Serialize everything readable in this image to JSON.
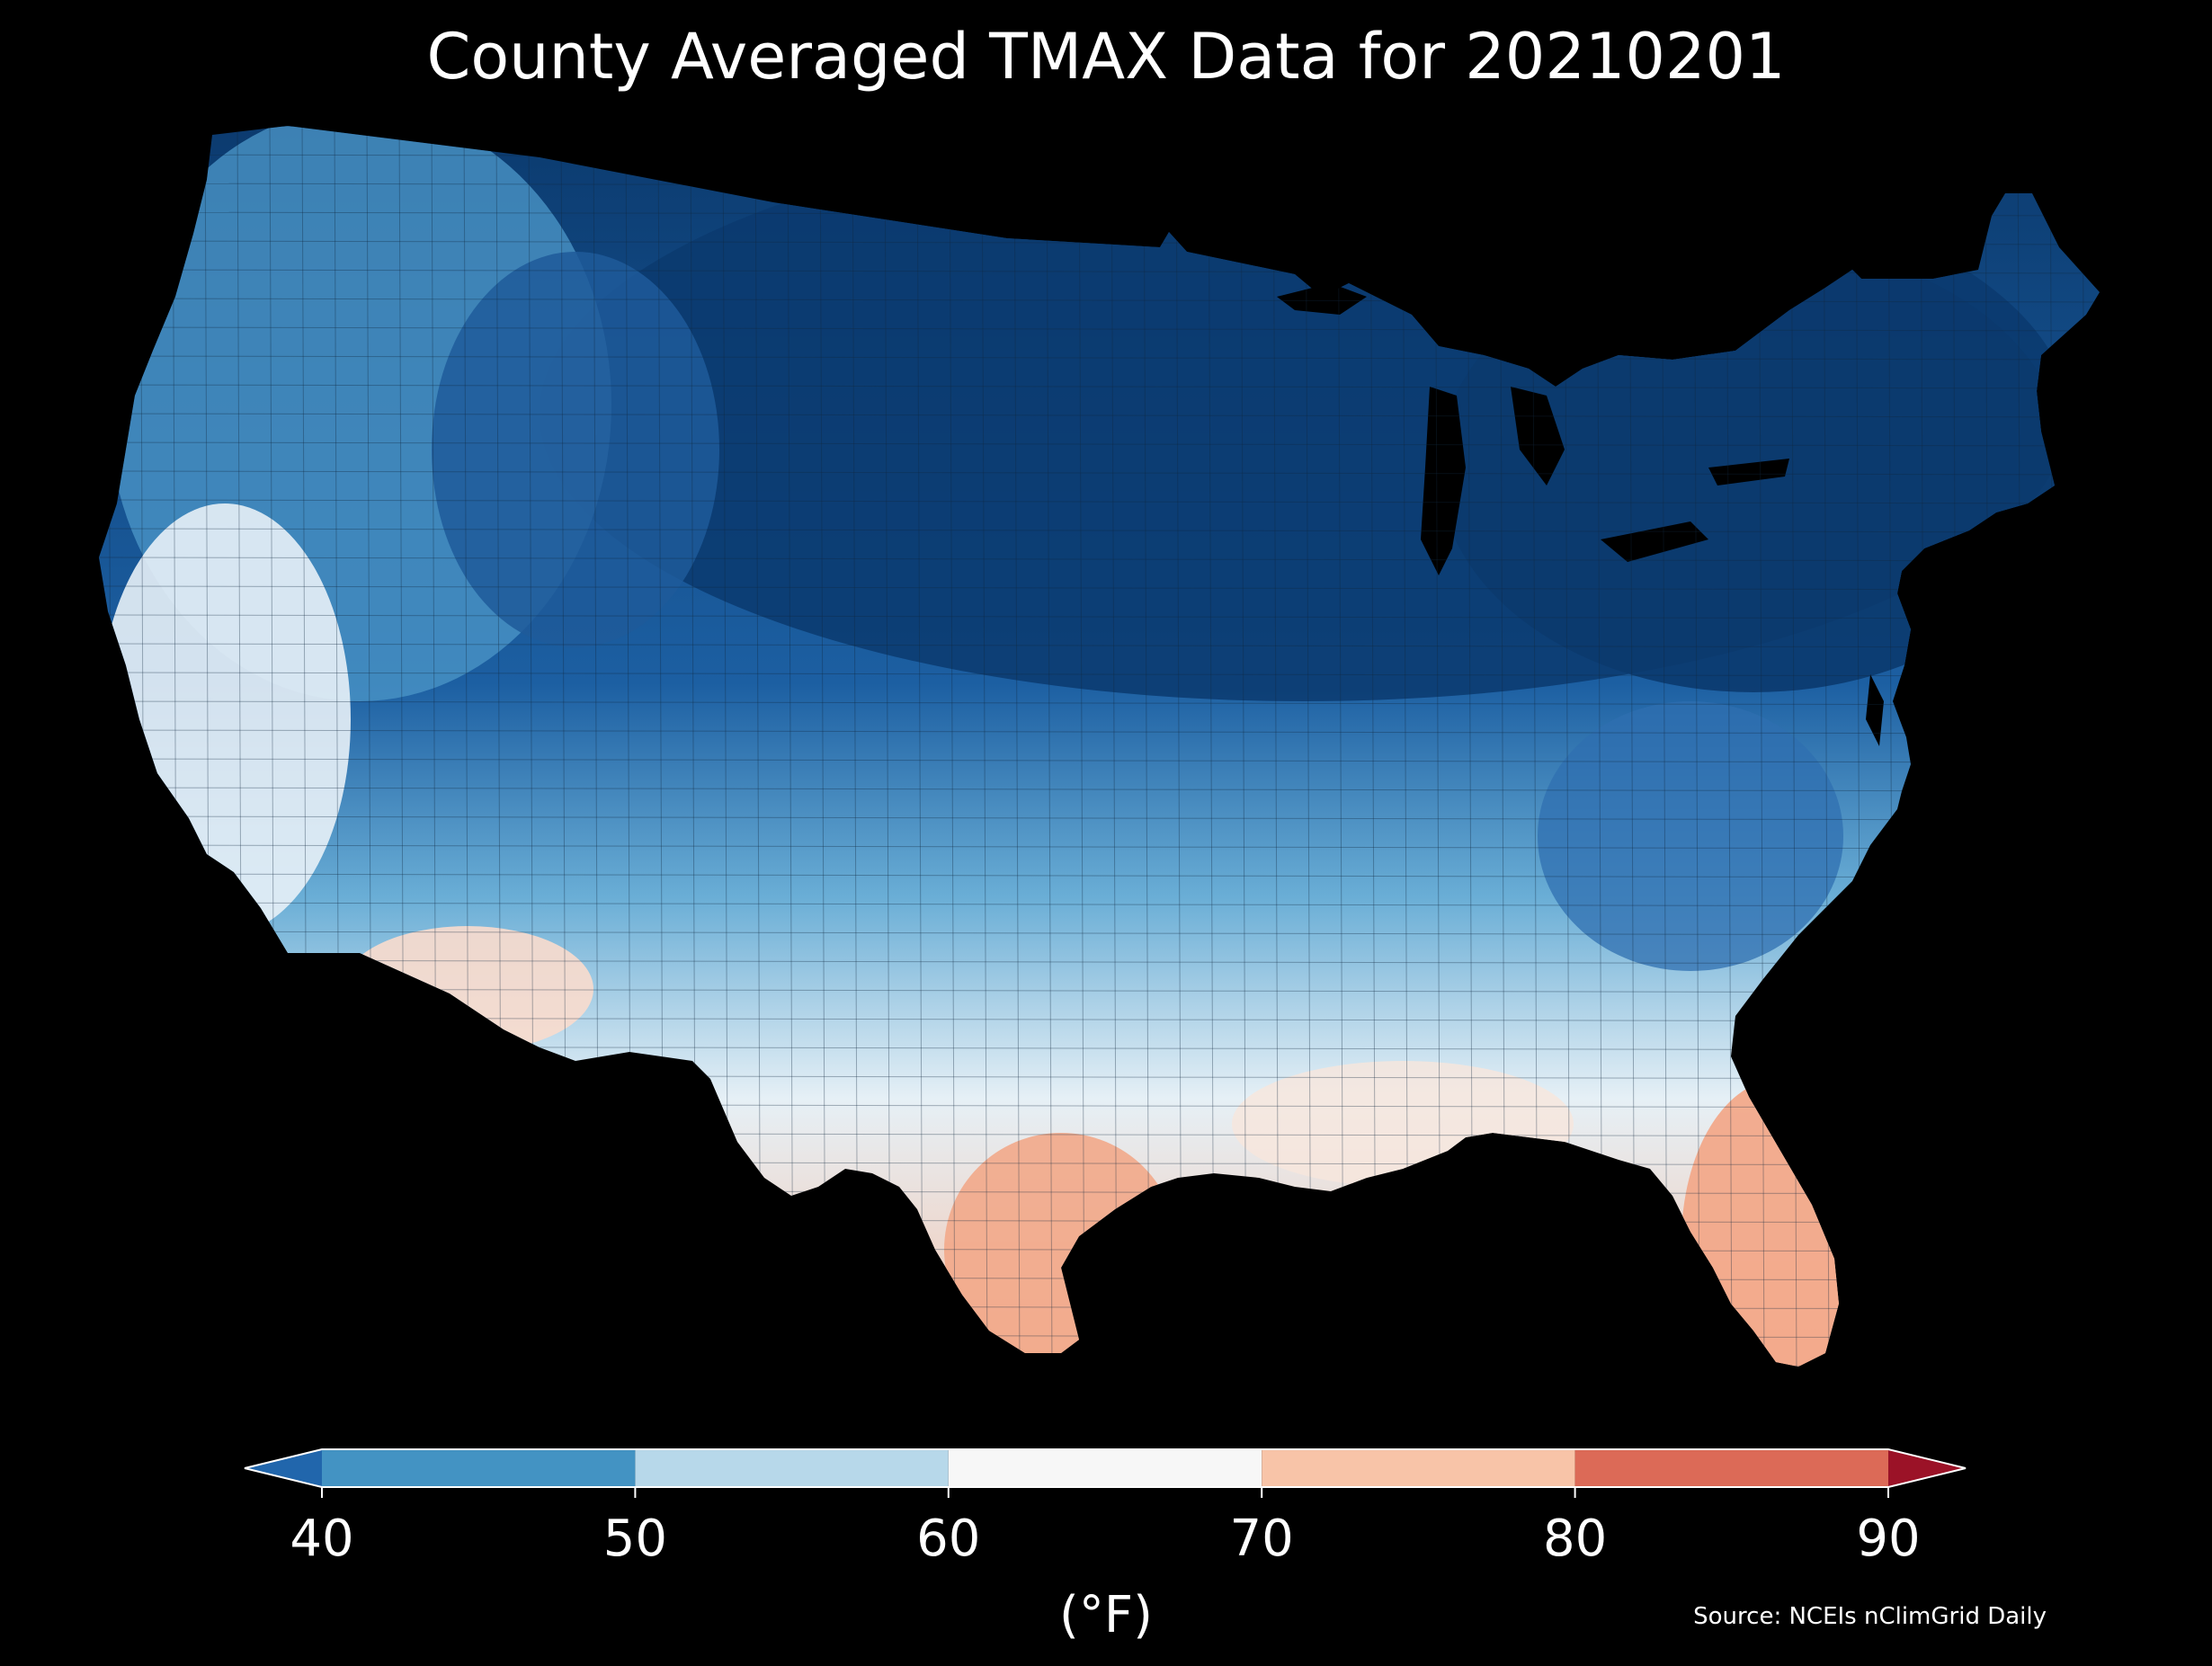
{
  "title": "County Averaged TMAX Data for 20210201",
  "legend": {
    "unit": "(°F)",
    "ticks": [
      "40",
      "50",
      "60",
      "70",
      "80",
      "90"
    ],
    "bins": [
      {
        "range": "<40",
        "color": "#2166ac"
      },
      {
        "range": "40-50",
        "color": "#4393c3"
      },
      {
        "range": "50-60",
        "color": "#b7d8ea"
      },
      {
        "range": "60-70",
        "color": "#f7f7f7"
      },
      {
        "range": "70-80",
        "color": "#f8c4a8"
      },
      {
        "range": "80-90",
        "color": "#dc6a57"
      },
      {
        "range": ">90",
        "color": "#9b1227"
      }
    ]
  },
  "source": "Source: NCEIs nClimGrid Daily",
  "map_regions": [
    {
      "name": "northern-plains-great-lakes-northeast",
      "tmax_bin": "<40",
      "color": "#0b3a6e"
    },
    {
      "name": "central-rockies",
      "tmax_bin": "<40",
      "color": "#1e5a9a"
    },
    {
      "name": "pacific-northwest-great-basin",
      "tmax_bin": "40-50",
      "color": "#4a93c6"
    },
    {
      "name": "southern-plains-southeast",
      "tmax_bin": "50-60",
      "color": "#a9d0e6"
    },
    {
      "name": "california-southwest-gulf-coast",
      "tmax_bin": "60-70",
      "color": "#e8f1f7"
    },
    {
      "name": "southern-arizona-texas-florida",
      "tmax_bin": "70-80",
      "color": "#f2a98a"
    }
  ]
}
